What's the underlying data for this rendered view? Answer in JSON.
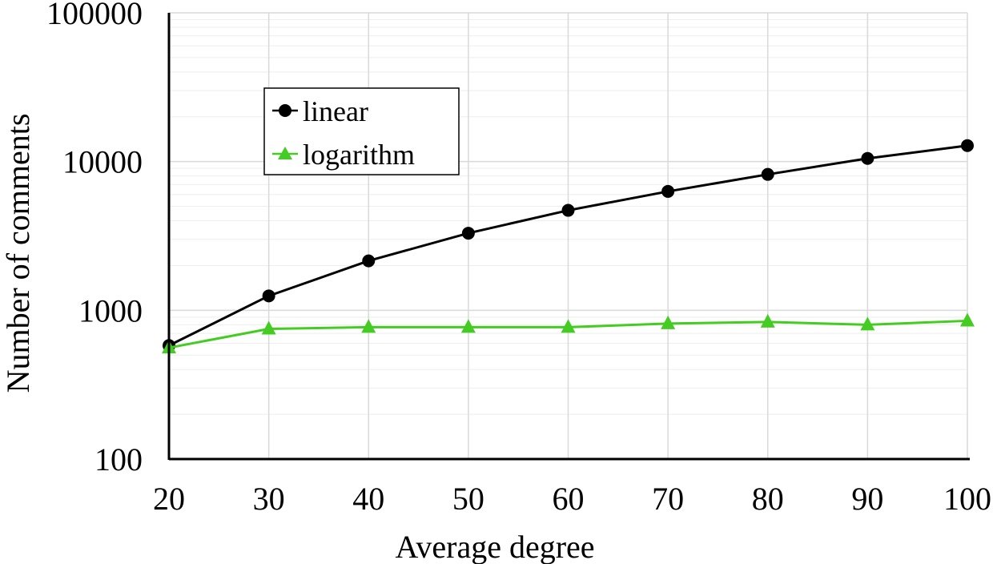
{
  "chart_data": {
    "type": "line",
    "title": "",
    "xlabel": "Average degree",
    "ylabel": "Number of comments",
    "x": [
      20,
      30,
      40,
      50,
      60,
      70,
      80,
      90,
      100
    ],
    "x_ticks": [
      "20",
      "30",
      "40",
      "50",
      "60",
      "70",
      "80",
      "90",
      "100"
    ],
    "xlim": [
      20,
      100
    ],
    "ylim": [
      100,
      100000
    ],
    "y_scale": "log",
    "y_ticks": [
      "100",
      "1000",
      "10000",
      "100000"
    ],
    "y_tick_values": [
      100,
      1000,
      10000,
      100000
    ],
    "grid": true,
    "legend_position": "top-left",
    "series": [
      {
        "name": "linear",
        "color": "#000000",
        "marker": "circle",
        "values": [
          580,
          1250,
          2150,
          3300,
          4700,
          6300,
          8200,
          10500,
          12800
        ]
      },
      {
        "name": "logarithm",
        "color": "#44cc22",
        "marker": "triangle",
        "values": [
          560,
          750,
          770,
          770,
          770,
          815,
          835,
          800,
          850
        ]
      }
    ]
  }
}
